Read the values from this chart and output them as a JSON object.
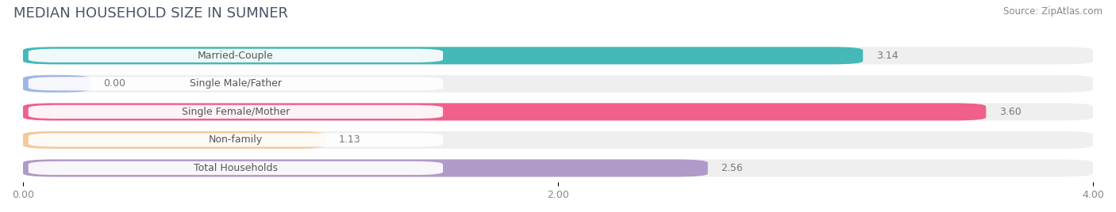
{
  "title": "MEDIAN HOUSEHOLD SIZE IN SUMNER",
  "source": "Source: ZipAtlas.com",
  "categories": [
    "Married-Couple",
    "Single Male/Father",
    "Single Female/Mother",
    "Non-family",
    "Total Households"
  ],
  "values": [
    3.14,
    0.0,
    3.6,
    1.13,
    2.56
  ],
  "bar_colors": [
    "#45b8b8",
    "#a0b4e8",
    "#f0608a",
    "#f5c897",
    "#b09ac8"
  ],
  "background_color": "#ffffff",
  "bar_bg_color": "#efefef",
  "xlim": [
    0,
    4.0
  ],
  "xticks": [
    0.0,
    2.0,
    4.0
  ],
  "xtick_labels": [
    "0.00",
    "2.00",
    "4.00"
  ],
  "title_fontsize": 13,
  "label_fontsize": 9,
  "value_fontsize": 9,
  "source_fontsize": 8.5
}
